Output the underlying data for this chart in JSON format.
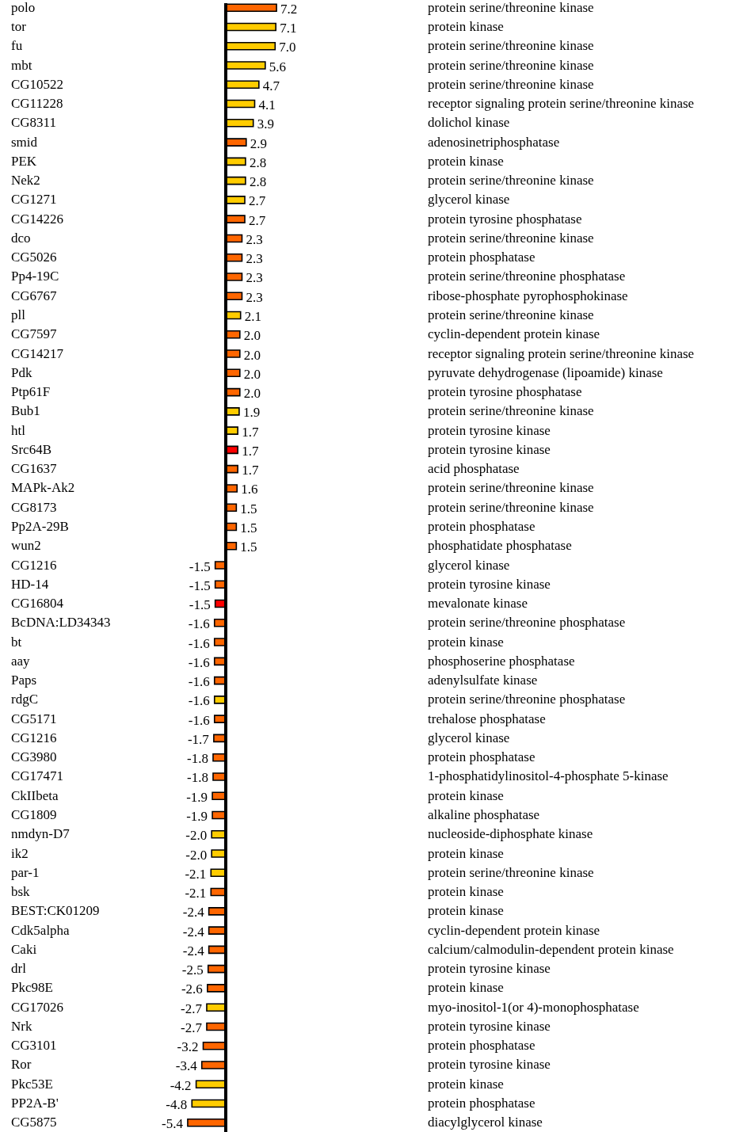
{
  "chart_data": {
    "type": "bar",
    "orientation": "horizontal",
    "value_labels": [
      "7.2",
      "7.1",
      "7.0",
      "5.6",
      "4.7",
      "4.1",
      "3.9",
      "2.9",
      "2.8",
      "2.8",
      "2.7",
      "2.7",
      "2.3",
      "2.3",
      "2.3",
      "2.3",
      "2.1",
      "2.0",
      "2.0",
      "2.0",
      "2.0",
      "1.9",
      "1.7",
      "1.7",
      "1.7",
      "1.6",
      "1.5",
      "1.5",
      "1.5",
      "-1.5",
      "-1.5",
      "-1.5",
      "-1.6",
      "-1.6",
      "-1.6",
      "-1.6",
      "-1.6",
      "-1.6",
      "-1.7",
      "-1.8",
      "-1.8",
      "-1.9",
      "-1.9",
      "-2.0",
      "-2.0",
      "-2.1",
      "-2.1",
      "-2.4",
      "-2.4",
      "-2.4",
      "-2.5",
      "-2.6",
      "-2.7",
      "-2.7",
      "-3.2",
      "-3.4",
      "-4.2",
      "-4.8",
      "-5.4"
    ],
    "categories": [
      "polo",
      "tor",
      "fu",
      "mbt",
      "CG10522",
      "CG11228",
      "CG8311",
      "smid",
      "PEK",
      "Nek2",
      "CG1271",
      "CG14226",
      "dco",
      "CG5026",
      "Pp4-19C",
      "CG6767",
      "pll",
      "CG7597",
      "CG14217",
      "Pdk",
      "Ptp61F",
      "Bub1",
      "htl",
      "Src64B",
      "CG1637",
      "MAPk-Ak2",
      "CG8173",
      "Pp2A-29B",
      "wun2",
      "CG1216",
      "HD-14",
      "CG16804",
      "BcDNA:LD34343",
      "bt",
      "aay",
      "Paps",
      "rdgC",
      "CG5171",
      "CG1216",
      "CG3980",
      "CG17471",
      "CkIIbeta",
      "CG1809",
      "nmdyn-D7",
      "ik2",
      "par-1",
      "bsk",
      "BEST:CK01209",
      "Cdk5alpha",
      "Caki",
      "drl",
      "Pkc98E",
      "CG17026",
      "Nrk",
      "CG3101",
      "Ror",
      "Pkc53E",
      "PP2A-B'",
      "CG5875"
    ],
    "values": [
      7.2,
      7.1,
      7.0,
      5.6,
      4.7,
      4.1,
      3.9,
      2.9,
      2.8,
      2.8,
      2.7,
      2.7,
      2.3,
      2.3,
      2.3,
      2.3,
      2.1,
      2.0,
      2.0,
      2.0,
      2.0,
      1.9,
      1.7,
      1.7,
      1.7,
      1.6,
      1.5,
      1.5,
      1.5,
      -1.5,
      -1.5,
      -1.5,
      -1.6,
      -1.6,
      -1.6,
      -1.6,
      -1.6,
      -1.6,
      -1.7,
      -1.8,
      -1.8,
      -1.9,
      -1.9,
      -2.0,
      -2.0,
      -2.1,
      -2.1,
      -2.4,
      -2.4,
      -2.4,
      -2.5,
      -2.6,
      -2.7,
      -2.7,
      -3.2,
      -3.4,
      -4.2,
      -4.8,
      -5.4
    ],
    "colors": [
      "#ff6600",
      "#ffcc00",
      "#ffcc00",
      "#ffcc00",
      "#ffcc00",
      "#ffcc00",
      "#ffcc00",
      "#ff6600",
      "#ffcc00",
      "#ffcc00",
      "#ffcc00",
      "#ff6600",
      "#ff6600",
      "#ff6600",
      "#ff6600",
      "#ff6600",
      "#ffcc00",
      "#ff6600",
      "#ff6600",
      "#ff6600",
      "#ff6600",
      "#ffcc00",
      "#ffcc00",
      "#ff0000",
      "#ff6600",
      "#ff6600",
      "#ff6600",
      "#ff6600",
      "#ff6600",
      "#ff6600",
      "#ff6600",
      "#ff0000",
      "#ff6600",
      "#ff6600",
      "#ff6600",
      "#ff6600",
      "#ffcc00",
      "#ff6600",
      "#ff6600",
      "#ff6600",
      "#ff6600",
      "#ff6600",
      "#ff6600",
      "#ffcc00",
      "#ffcc00",
      "#ffcc00",
      "#ff6600",
      "#ff6600",
      "#ff6600",
      "#ff6600",
      "#ff6600",
      "#ff6600",
      "#ffcc00",
      "#ff6600",
      "#ff6600",
      "#ff6600",
      "#ffcc00",
      "#ffcc00",
      "#ff6600"
    ],
    "annotations": [
      "protein serine/threonine kinase",
      "protein kinase",
      "protein serine/threonine kinase",
      "protein serine/threonine kinase",
      "protein serine/threonine kinase",
      "receptor signaling protein serine/threonine kinase",
      "dolichol kinase",
      "adenosinetriphosphatase",
      "protein kinase",
      "protein serine/threonine kinase",
      "glycerol kinase",
      "protein tyrosine phosphatase",
      "protein serine/threonine kinase",
      "protein phosphatase",
      "protein serine/threonine phosphatase",
      "ribose-phosphate pyrophosphokinase",
      "protein serine/threonine kinase",
      "cyclin-dependent protein kinase",
      "receptor signaling protein serine/threonine kinase",
      "pyruvate dehydrogenase (lipoamide) kinase",
      "protein tyrosine phosphatase",
      "protein serine/threonine kinase",
      "protein tyrosine kinase",
      "protein tyrosine kinase",
      "acid phosphatase",
      "protein serine/threonine kinase",
      "protein serine/threonine kinase",
      "protein phosphatase",
      "phosphatidate phosphatase",
      "glycerol kinase",
      "protein tyrosine kinase",
      "mevalonate kinase",
      "protein serine/threonine phosphatase",
      "protein kinase",
      "phosphoserine phosphatase",
      "adenylsulfate kinase",
      "protein serine/threonine phosphatase",
      "trehalose phosphatase",
      "glycerol kinase",
      "protein phosphatase",
      "1-phosphatidylinositol-4-phosphate 5-kinase",
      "protein kinase",
      "alkaline phosphatase",
      "nucleoside-diphosphate kinase",
      "protein kinase",
      "protein serine/threonine kinase",
      "protein kinase",
      "protein kinase",
      "cyclin-dependent protein kinase",
      "calcium/calmodulin-dependent protein kinase",
      "protein tyrosine kinase",
      "protein kinase",
      "myo-inositol-1(or 4)-monophosphatase",
      "protein tyrosine kinase",
      "protein phosphatase",
      "protein tyrosine kinase",
      "protein kinase",
      "protein phosphatase",
      "diacylglycerol kinase"
    ]
  }
}
